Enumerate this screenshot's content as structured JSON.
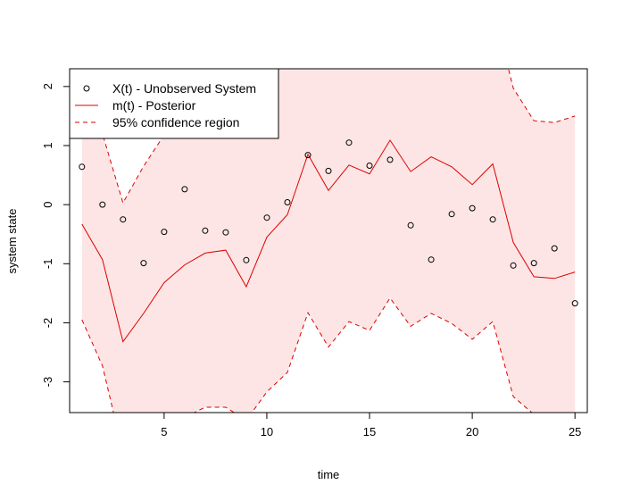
{
  "chart_data": {
    "type": "line",
    "title": "",
    "xlabel": "time",
    "ylabel": "system state",
    "xlim": [
      0.4,
      25.6
    ],
    "ylim": [
      -3.52,
      2.3
    ],
    "x_ticks": [
      5,
      10,
      15,
      20,
      25
    ],
    "y_ticks": [
      -3,
      -2,
      -1,
      0,
      1,
      2
    ],
    "grid": false,
    "legend_position": "top-left",
    "colors": {
      "observed": "#000000",
      "posterior": "#dd0000",
      "band_fill": "#fde5e5"
    },
    "x": [
      1,
      2,
      3,
      4,
      5,
      6,
      7,
      8,
      9,
      10,
      11,
      12,
      13,
      14,
      15,
      16,
      17,
      18,
      19,
      20,
      21,
      22,
      23,
      24,
      25
    ],
    "series": [
      {
        "name": "X(t) - Unobserved System",
        "style": "points-open-circle",
        "values": [
          0.64,
          0.0,
          -0.25,
          -0.99,
          -0.46,
          0.26,
          -0.44,
          -0.47,
          -0.94,
          -0.22,
          0.04,
          0.84,
          0.57,
          1.05,
          0.66,
          0.76,
          -0.35,
          -0.93,
          -0.16,
          -0.06,
          -0.25,
          -1.03,
          -0.99,
          -0.74,
          -1.67
        ]
      },
      {
        "name": "m(t) - Posterior",
        "style": "solid-line",
        "values": [
          -0.33,
          -0.93,
          -2.32,
          -1.84,
          -1.32,
          -1.02,
          -0.82,
          -0.77,
          -1.39,
          -0.55,
          -0.17,
          0.85,
          0.24,
          0.67,
          0.52,
          1.09,
          0.56,
          0.81,
          0.64,
          0.34,
          0.69,
          -0.64,
          -1.22,
          -1.25,
          -1.14
        ]
      },
      {
        "name": "95% confidence region",
        "style": "dashed-line",
        "lower": [
          -1.95,
          -2.73,
          -4.2,
          -3.72,
          -3.63,
          -3.6,
          -3.43,
          -3.43,
          -3.65,
          -3.17,
          -2.84,
          -1.83,
          -2.41,
          -1.98,
          -2.13,
          -1.58,
          -2.06,
          -1.84,
          -2.01,
          -2.28,
          -1.98,
          -3.25,
          -3.55,
          -3.55,
          -3.55
        ],
        "upper": [
          1.3,
          1.2,
          0.03,
          0.65,
          1.18,
          1.57,
          2.0,
          2.1,
          1.35,
          2.13,
          2.52,
          3.55,
          2.88,
          3.33,
          3.15,
          3.7,
          3.14,
          3.43,
          3.26,
          2.97,
          3.36,
          1.97,
          1.42,
          1.39,
          1.5
        ]
      }
    ],
    "legend": [
      {
        "label": "X(t) - Unobserved System",
        "symbol": "circle"
      },
      {
        "label": "m(t) - Posterior",
        "symbol": "solid"
      },
      {
        "label": "95% confidence region",
        "symbol": "dashed"
      }
    ]
  }
}
